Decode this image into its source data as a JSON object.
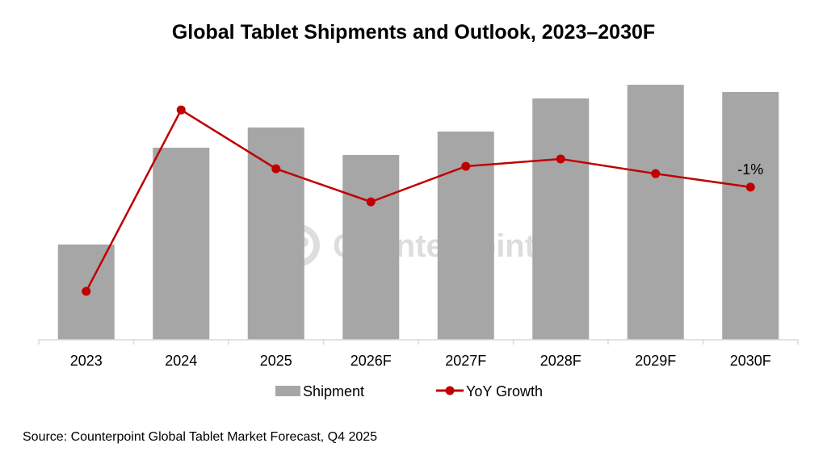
{
  "chart_data": {
    "type": "bar+line",
    "title": "Global Tablet Shipments and Outlook, 2023–2030F",
    "categories": [
      "2023",
      "2024",
      "2025",
      "2026F",
      "2027F",
      "2028F",
      "2029F",
      "2030F"
    ],
    "series": [
      {
        "name": "Shipment",
        "type": "bar",
        "color": "#A6A6A6",
        "axis": "primary",
        "values": [
          118,
          238,
          263,
          229,
          258,
          299,
          316,
          307
        ],
        "unit": "relative (no axis shown)"
      },
      {
        "name": "YoY Growth",
        "type": "line",
        "color": "#C00000",
        "axis": "secondary",
        "values": [
          -18,
          11.6,
          2.0,
          -3.4,
          2.4,
          3.6,
          1.2,
          -1
        ],
        "unit": "% (estimated)"
      }
    ],
    "data_labels": [
      {
        "series": "YoY Growth",
        "category": "2030F",
        "text": "-1%"
      }
    ],
    "ylim": [
      0,
      330
    ],
    "y2lim": [
      -25.9,
      17.55
    ],
    "grid": false,
    "legend": {
      "placement": "bottom",
      "entries": [
        "Shipment",
        "YoY Growth"
      ]
    },
    "source": "Source: Counterpoint Global Tablet Market Forecast, Q4 2025",
    "watermark": "Counterpoint"
  }
}
